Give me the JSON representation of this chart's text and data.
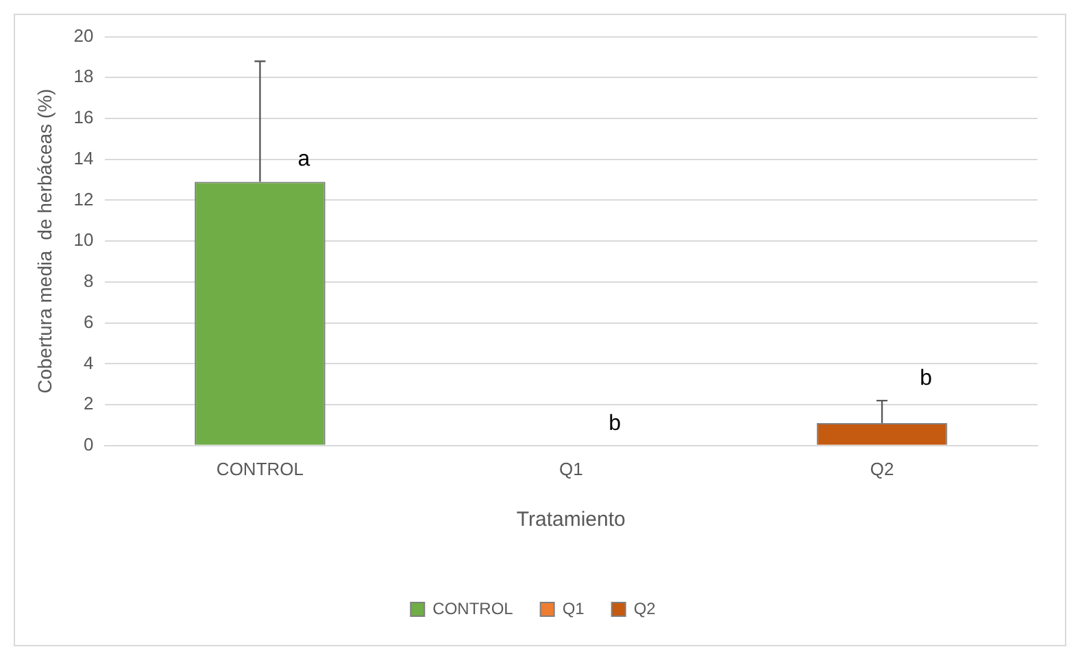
{
  "chart_data": {
    "type": "bar",
    "xlabel": "Tratamiento",
    "ylabel": "Cobertura media  de herbáceas (%)",
    "categories": [
      "CONTROL",
      "Q1",
      "Q2"
    ],
    "series": [
      {
        "name": "CONTROL",
        "color": "#70ad47",
        "values": [
          12.9,
          null,
          null
        ],
        "errors": [
          [
            12.9,
            18.8
          ],
          null,
          null
        ]
      },
      {
        "name": "Q1",
        "color": "#ed7d31",
        "values": [
          null,
          0,
          null
        ]
      },
      {
        "name": "Q2",
        "color": "#c55a11",
        "values": [
          null,
          null,
          1.1
        ],
        "errors": [
          null,
          null,
          [
            1.1,
            2.2
          ]
        ]
      }
    ],
    "ylim": [
      0,
      20
    ],
    "yticks": [
      0,
      2,
      4,
      6,
      8,
      10,
      12,
      14,
      16,
      18,
      20
    ],
    "grid": "y",
    "legend": "bottom",
    "annotations": [
      {
        "text": "a",
        "x": "CONTROL",
        "y": 12.9
      },
      {
        "text": "b",
        "x": "Q1",
        "y": 0
      },
      {
        "text": "b",
        "x": "Q2",
        "y": 2.2
      }
    ]
  }
}
